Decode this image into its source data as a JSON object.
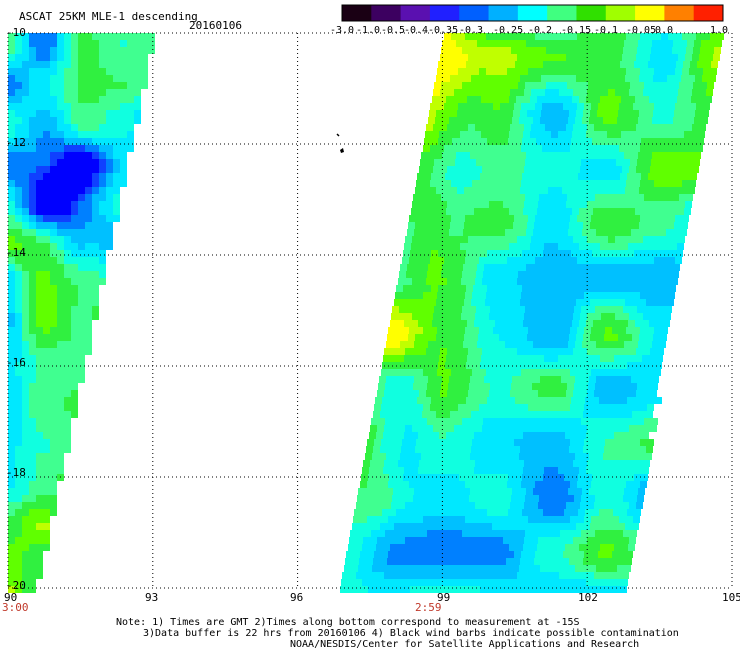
{
  "header": {
    "title": "ASCAT 25KM MLE-1 descending",
    "date": "20160106"
  },
  "colorbar": {
    "labels": [
      "-3.0",
      "-1.0",
      "-0.5",
      "-0.4",
      "-0.35",
      "-0.3",
      "-0.25",
      "-0.2",
      "-0.15",
      "-0.1",
      "-0.05",
      "0.0",
      "1.0"
    ],
    "colors": [
      "#1a0014",
      "#3c0060",
      "#5a10b0",
      "#2020ff",
      "#0060ff",
      "#00b0ff",
      "#00ffff",
      "#40ff80",
      "#30e000",
      "#a0ff00",
      "#ffff00",
      "#ff8000",
      "#ff2000"
    ]
  },
  "axes": {
    "lat_labels": [
      "-10",
      "-12",
      "-14",
      "-16",
      "-18",
      "-20"
    ],
    "lon_labels": [
      "90",
      "93",
      "96",
      "99",
      "102",
      "105"
    ]
  },
  "times": {
    "left": "3:00",
    "right": "2:59"
  },
  "footer": {
    "line1": "Note: 1) Times are GMT 2)Times along bottom correspond to measurement at -15S",
    "line2": "3)Data buffer is 22 hrs from 20160106 4) Black wind barbs indicate possible contamination",
    "line3": "NOAA/NESDIS/Center for Satellite Applications and Research"
  }
}
